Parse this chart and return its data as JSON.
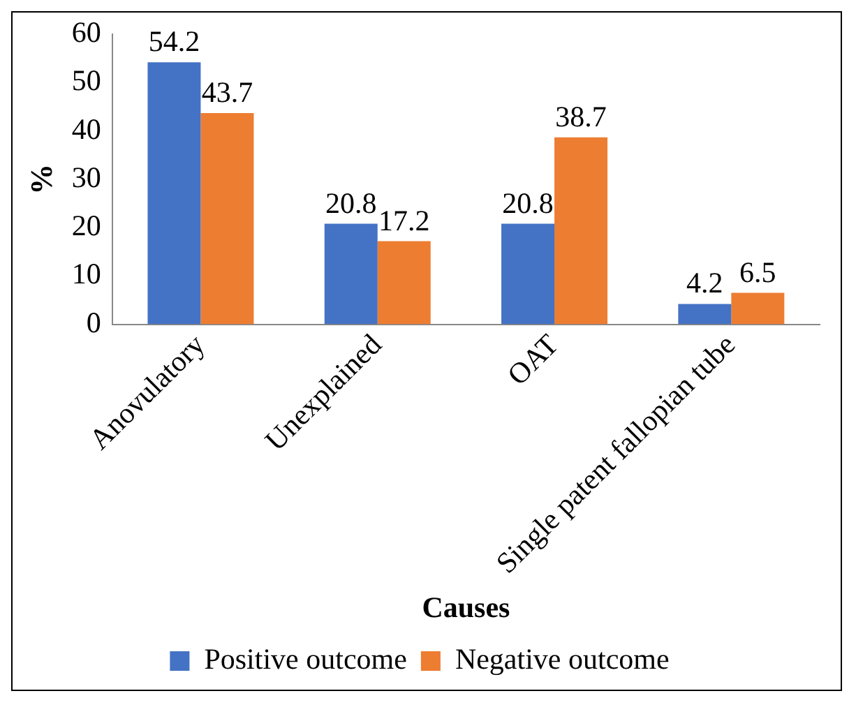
{
  "chart_data": {
    "type": "bar",
    "xlabel": "Causes",
    "ylabel": "%",
    "categories": [
      "Anovulatory",
      "Unexplained",
      "OAT",
      "Single patent fallopian tube"
    ],
    "series": [
      {
        "name": "Positive outcome",
        "color": "#4472c4",
        "values": [
          54.2,
          20.8,
          20.8,
          4.2
        ]
      },
      {
        "name": "Negative outcome",
        "color": "#ed7d31",
        "values": [
          43.7,
          17.2,
          38.7,
          6.5
        ]
      }
    ],
    "ylim": [
      0,
      60
    ],
    "yticks": [
      0,
      10,
      20,
      30,
      40,
      50,
      60
    ],
    "grid": false,
    "legend": "bottom",
    "data_labels": true
  }
}
